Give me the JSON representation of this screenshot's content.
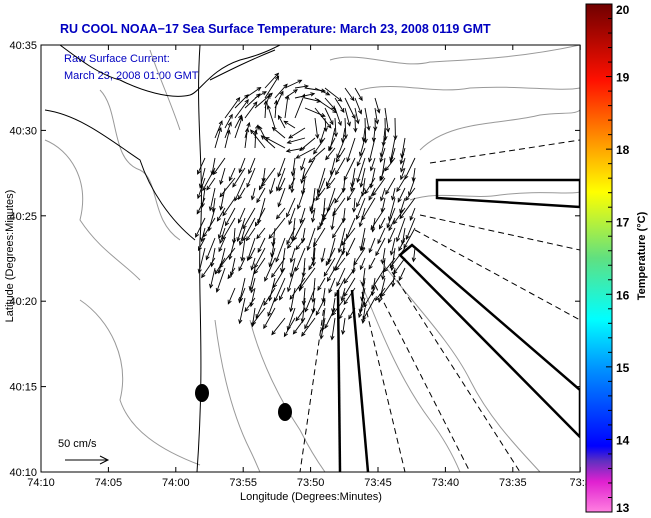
{
  "chart_data": {
    "type": "scatter",
    "title": "RU COOL  NOAA−17  Sea Surface Temperature:  March 23, 2008 0119 GMT",
    "xlabel": "Longitude (Degrees:Minutes)",
    "ylabel": "Latitude (Degrees:Minutes)",
    "x_ticks": [
      "74:10",
      "74:05",
      "74:00",
      "73:55",
      "73:50",
      "73:45",
      "73:40",
      "73:35",
      "73:3"
    ],
    "y_ticks": [
      "40:35",
      "40:30",
      "40:25",
      "40:20",
      "40:15",
      "40:10"
    ],
    "xlim_minutes_west": [
      70,
      30
    ],
    "ylim_minutes_north": [
      10,
      35
    ],
    "annotations": {
      "line1": "Raw Surface Current:",
      "line2": "March 23, 2008 01:00 GMT"
    },
    "scale_label": "50 cm/s",
    "colorbar": {
      "label": "Temperature (°C)",
      "ticks": [
        "20",
        "19",
        "18",
        "17",
        "16",
        "15",
        "14",
        "13"
      ],
      "range": [
        13,
        20
      ]
    },
    "markers": [
      {
        "lon_min": 58.8,
        "lat_min": 14.6
      },
      {
        "lon_min": 52.3,
        "lat_min": 13.5
      }
    ]
  },
  "colors": {
    "title": "#0000c0",
    "contour": "#999999",
    "vector": "#000000"
  }
}
